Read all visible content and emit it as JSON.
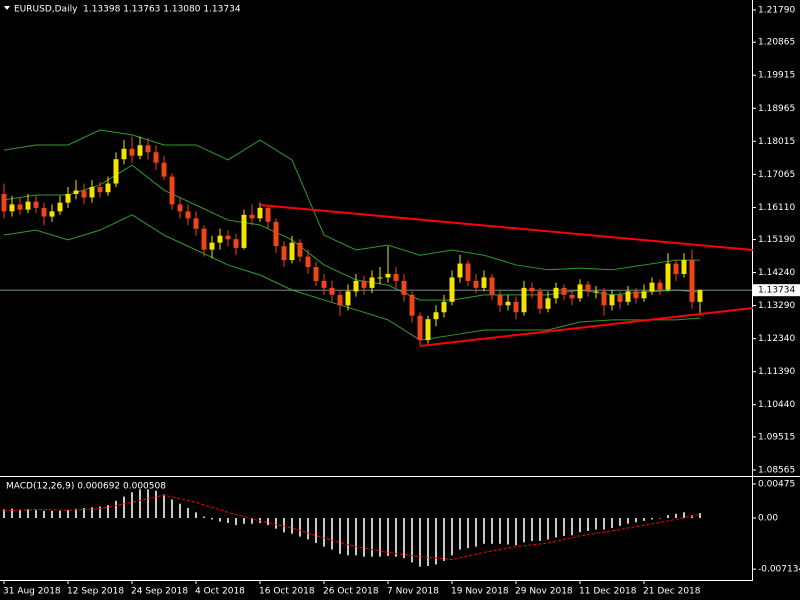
{
  "chart_data": [
    {
      "type": "candlestick",
      "title": "EURUSD,Daily  1.13398 1.13763 1.13080 1.13734",
      "x_labels": [
        {
          "index": 0,
          "label": "31 Aug 2018"
        },
        {
          "index": 8,
          "label": "12 Sep 2018"
        },
        {
          "index": 16,
          "label": "24 Sep 2018"
        },
        {
          "index": 24,
          "label": "4 Oct 2018"
        },
        {
          "index": 32,
          "label": "16 Oct 2018"
        },
        {
          "index": 40,
          "label": "26 Oct 2018"
        },
        {
          "index": 48,
          "label": "7 Nov 2018"
        },
        {
          "index": 56,
          "label": "19 Nov 2018"
        },
        {
          "index": 64,
          "label": "29 Nov 2018"
        },
        {
          "index": 72,
          "label": "11 Dec 2018"
        },
        {
          "index": 80,
          "label": "21 Dec 2018"
        }
      ],
      "open": [
        1.165,
        1.16,
        1.162,
        1.1605,
        1.1628,
        1.161,
        1.1585,
        1.16,
        1.1625,
        1.165,
        1.166,
        1.164,
        1.167,
        1.1655,
        1.168,
        1.175,
        1.178,
        1.176,
        1.179,
        1.177,
        1.174,
        1.17,
        1.162,
        1.16,
        1.158,
        1.155,
        1.149,
        1.151,
        1.153,
        1.152,
        1.1495,
        1.159,
        1.158,
        1.161,
        1.157,
        1.15,
        1.146,
        1.151,
        1.147,
        1.144,
        1.14,
        1.138,
        1.136,
        1.133,
        1.137,
        1.14,
        1.138,
        1.141,
        1.141,
        1.142,
        1.14,
        1.136,
        1.13,
        1.123,
        1.129,
        1.131,
        1.134,
        1.141,
        1.145,
        1.14,
        1.138,
        1.141,
        1.136,
        1.133,
        1.134,
        1.131,
        1.138,
        1.137,
        1.132,
        1.135,
        1.138,
        1.136,
        1.135,
        1.139,
        1.137,
        1.137,
        1.133,
        1.136,
        1.134,
        1.137,
        1.135,
        1.137,
        1.1395,
        1.1375,
        1.145,
        1.142,
        1.146,
        1.13398
      ],
      "high": [
        1.168,
        1.1645,
        1.164,
        1.165,
        1.1645,
        1.1625,
        1.162,
        1.1645,
        1.167,
        1.169,
        1.168,
        1.169,
        1.1685,
        1.17,
        1.177,
        1.1805,
        1.1815,
        1.1815,
        1.181,
        1.179,
        1.176,
        1.171,
        1.164,
        1.162,
        1.16,
        1.156,
        1.153,
        1.155,
        1.1545,
        1.1535,
        1.1605,
        1.162,
        1.1625,
        1.1615,
        1.158,
        1.1515,
        1.153,
        1.152,
        1.149,
        1.1455,
        1.142,
        1.14,
        1.1375,
        1.139,
        1.142,
        1.1415,
        1.143,
        1.144,
        1.15,
        1.144,
        1.142,
        1.137,
        1.131,
        1.13,
        1.133,
        1.136,
        1.143,
        1.1475,
        1.146,
        1.142,
        1.143,
        1.142,
        1.1375,
        1.136,
        1.1355,
        1.14,
        1.1395,
        1.138,
        1.137,
        1.1395,
        1.139,
        1.1375,
        1.1405,
        1.14,
        1.1385,
        1.138,
        1.1375,
        1.137,
        1.1385,
        1.138,
        1.139,
        1.141,
        1.1405,
        1.148,
        1.146,
        1.148,
        1.149,
        1.13763
      ],
      "low": [
        1.158,
        1.1585,
        1.159,
        1.1595,
        1.1595,
        1.156,
        1.157,
        1.159,
        1.161,
        1.1635,
        1.162,
        1.1625,
        1.164,
        1.1645,
        1.167,
        1.1735,
        1.174,
        1.175,
        1.175,
        1.172,
        1.169,
        1.1605,
        1.158,
        1.156,
        1.153,
        1.147,
        1.1465,
        1.149,
        1.15,
        1.1475,
        1.149,
        1.156,
        1.157,
        1.155,
        1.148,
        1.144,
        1.145,
        1.1455,
        1.142,
        1.1385,
        1.136,
        1.134,
        1.13,
        1.1315,
        1.1355,
        1.136,
        1.1365,
        1.139,
        1.1395,
        1.138,
        1.134,
        1.128,
        1.1215,
        1.122,
        1.127,
        1.1295,
        1.133,
        1.1395,
        1.1385,
        1.1365,
        1.137,
        1.1345,
        1.131,
        1.1315,
        1.129,
        1.13,
        1.135,
        1.1305,
        1.131,
        1.1335,
        1.1345,
        1.133,
        1.134,
        1.1355,
        1.135,
        1.13,
        1.1315,
        1.132,
        1.133,
        1.1335,
        1.134,
        1.136,
        1.136,
        1.137,
        1.14,
        1.141,
        1.132,
        1.1308
      ],
      "close": [
        1.16,
        1.162,
        1.1605,
        1.1628,
        1.161,
        1.1585,
        1.16,
        1.1625,
        1.165,
        1.166,
        1.164,
        1.167,
        1.1655,
        1.168,
        1.175,
        1.178,
        1.176,
        1.179,
        1.177,
        1.174,
        1.17,
        1.162,
        1.16,
        1.158,
        1.155,
        1.149,
        1.151,
        1.153,
        1.152,
        1.1495,
        1.159,
        1.158,
        1.161,
        1.157,
        1.15,
        1.146,
        1.151,
        1.147,
        1.144,
        1.14,
        1.138,
        1.136,
        1.133,
        1.137,
        1.14,
        1.138,
        1.141,
        1.141,
        1.142,
        1.14,
        1.136,
        1.13,
        1.123,
        1.129,
        1.131,
        1.134,
        1.141,
        1.145,
        1.14,
        1.138,
        1.141,
        1.136,
        1.133,
        1.134,
        1.131,
        1.138,
        1.137,
        1.132,
        1.135,
        1.138,
        1.136,
        1.135,
        1.139,
        1.137,
        1.137,
        1.133,
        1.136,
        1.134,
        1.137,
        1.135,
        1.137,
        1.1395,
        1.1375,
        1.145,
        1.142,
        1.146,
        1.134,
        1.13734
      ],
      "up_color": "#f5e400",
      "down_color": "#f0441c",
      "ylim": [
        1.0842,
        1.22078
      ],
      "yticks": [
        {
          "value": 1.2179,
          "label": "1.21790"
        },
        1.20865,
        1.19915,
        1.18965,
        1.18015,
        1.17065,
        {
          "value": 1.1611,
          "label": "1.16110"
        },
        {
          "value": 1.1519,
          "label": "1.15190"
        },
        {
          "value": 1.1424,
          "label": "1.14240"
        },
        {
          "value": 1.1329,
          "label": "1.13290"
        },
        {
          "value": 1.1234,
          "label": "1.12340"
        },
        {
          "value": 1.1139,
          "label": "1.11390"
        },
        {
          "value": 1.1044,
          "label": "1.10440"
        },
        1.09515,
        1.08565
      ],
      "current_price": 1.13734,
      "bollinger": {
        "color": "#2e9e2e",
        "x": [
          0,
          4,
          8,
          12,
          16,
          20,
          24,
          28,
          32,
          36,
          40,
          44,
          48,
          52,
          56,
          60,
          64,
          68,
          72,
          76,
          80,
          84,
          87
        ],
        "upper": [
          1.1776,
          1.1791,
          1.1791,
          1.1834,
          1.182,
          1.1791,
          1.1791,
          1.1748,
          1.1805,
          1.1748,
          1.1532,
          1.1489,
          1.1503,
          1.1474,
          1.1489,
          1.1474,
          1.1446,
          1.1432,
          1.1437,
          1.1432,
          1.1446,
          1.146,
          1.146
        ],
        "middle": [
          1.1633,
          1.1647,
          1.1647,
          1.1676,
          1.1733,
          1.1661,
          1.1618,
          1.1575,
          1.1561,
          1.1518,
          1.1446,
          1.1403,
          1.1388,
          1.1345,
          1.1345,
          1.136,
          1.136,
          1.136,
          1.1374,
          1.136,
          1.1368,
          1.1374,
          1.1368
        ],
        "lower": [
          1.1532,
          1.1546,
          1.1518,
          1.1546,
          1.159,
          1.1532,
          1.1489,
          1.1446,
          1.1417,
          1.1374,
          1.1345,
          1.1317,
          1.1288,
          1.123,
          1.1244,
          1.1259,
          1.1259,
          1.1259,
          1.1282,
          1.1288,
          1.1288,
          1.1288,
          1.1293
        ]
      },
      "trendlines": [
        {
          "color": "#ff0000",
          "x": [
            32,
            93.6
          ],
          "y": [
            1.16183,
            1.1489
          ]
        },
        {
          "color": "#ff0000",
          "x": [
            52,
            93.6
          ],
          "y": [
            1.12129,
            1.13222
          ]
        }
      ]
    },
    {
      "type": "macd",
      "title": "MACD(12,26,9) 0.000692 0.000508",
      "histogram": [
        0.0012,
        0.0013,
        0.0012,
        0.0012,
        0.0011,
        0.001,
        0.001,
        0.001,
        0.0011,
        0.0013,
        0.0014,
        0.0015,
        0.0016,
        0.0018,
        0.0024,
        0.003,
        0.0036,
        0.004,
        0.004,
        0.0038,
        0.0033,
        0.0026,
        0.002,
        0.0014,
        0.0008,
        0.0002,
        -0.0002,
        -0.0005,
        -0.0007,
        -0.001,
        -0.0008,
        -0.0008,
        -0.0007,
        -0.001,
        -0.0015,
        -0.002,
        -0.0022,
        -0.0026,
        -0.003,
        -0.0035,
        -0.004,
        -0.0044,
        -0.005,
        -0.0052,
        -0.0052,
        -0.0054,
        -0.0054,
        -0.0054,
        -0.0053,
        -0.0054,
        -0.0056,
        -0.0062,
        -0.0068,
        -0.0067,
        -0.0065,
        -0.006,
        -0.0052,
        -0.0044,
        -0.0042,
        -0.004,
        -0.0036,
        -0.0036,
        -0.0036,
        -0.0037,
        -0.0038,
        -0.0034,
        -0.0032,
        -0.0032,
        -0.003,
        -0.0027,
        -0.0025,
        -0.0024,
        -0.002,
        -0.0018,
        -0.0016,
        -0.0016,
        -0.0014,
        -0.0011,
        -0.0008,
        -0.0006,
        -0.0004,
        -0.0002,
        0,
        0.0004,
        0.0006,
        0.0008,
        0.0004,
        0.000692
      ],
      "histogram_color": "#c8c8c8",
      "signal_x": [
        0,
        4,
        8,
        12,
        16,
        20,
        24,
        28,
        32,
        36,
        40,
        44,
        48,
        52,
        56,
        60,
        64,
        68,
        72,
        76,
        80,
        84,
        87
      ],
      "signal": [
        0.001,
        0.0012,
        0.0011,
        0.0013,
        0.0022,
        0.0032,
        0.0022,
        0.0008,
        -0.0004,
        -0.0014,
        -0.0028,
        -0.004,
        -0.0048,
        -0.0054,
        -0.0058,
        -0.0048,
        -0.004,
        -0.0035,
        -0.0025,
        -0.0018,
        -0.001,
        -0.0002,
        0.000508
      ],
      "signal_color": "#ff0000",
      "ylim": [
        -0.00866,
        0.00573
      ],
      "yticks": [
        0.00475,
        {
          "value": 0,
          "label": "0.00"
        },
        -0.007134
      ]
    }
  ]
}
